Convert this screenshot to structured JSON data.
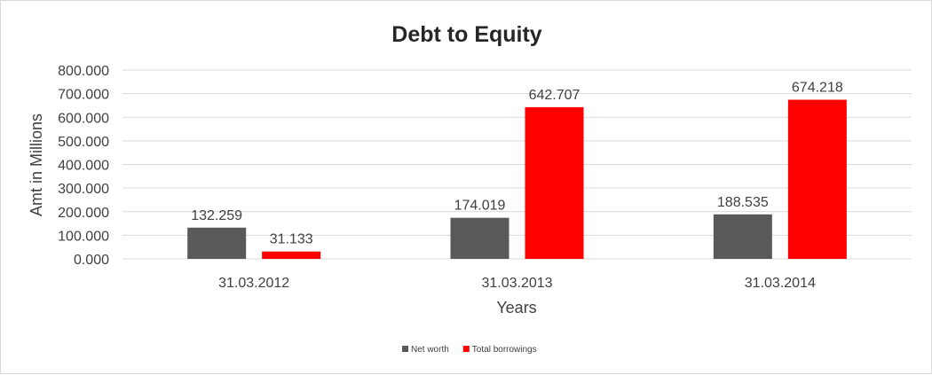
{
  "chart_data": {
    "type": "bar",
    "title": "Debt to Equity",
    "xlabel": "Years",
    "ylabel": "Amt in Millions",
    "categories": [
      "31.03.2012",
      "31.03.2013",
      "31.03.2014"
    ],
    "series": [
      {
        "name": "Net worth",
        "values": [
          132.259,
          174.019,
          188.535
        ],
        "color": "#595959"
      },
      {
        "name": "Total borrowings",
        "values": [
          31.133,
          642.707,
          674.218
        ],
        "color": "#ff0000"
      }
    ],
    "value_labels": [
      [
        "132.259",
        "174.019",
        "188.535"
      ],
      [
        "31.133",
        "642.707",
        "674.218"
      ]
    ],
    "ylim": [
      0,
      800
    ],
    "yticks": [
      "0.000",
      "100.000",
      "200.000",
      "300.000",
      "400.000",
      "500.000",
      "600.000",
      "700.000",
      "800.000"
    ],
    "grid": true,
    "legend_position": "bottom"
  }
}
